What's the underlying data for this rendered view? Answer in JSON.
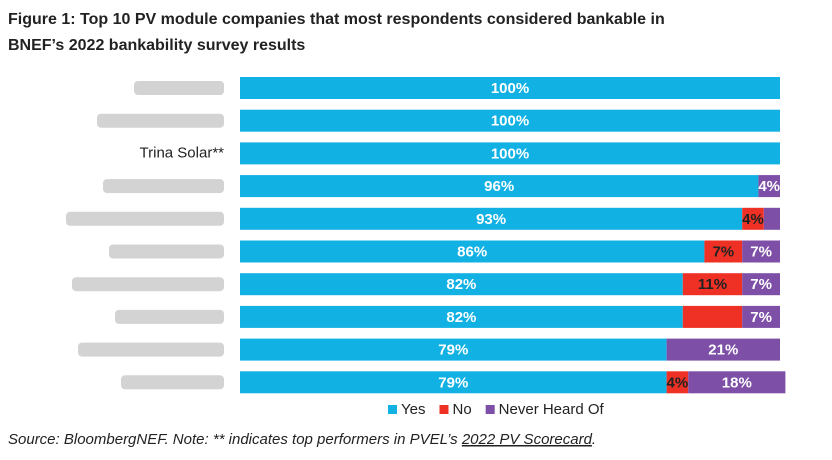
{
  "chart_data": {
    "type": "stacked-bar-horizontal",
    "title": "Figure 1:  Top 10 PV module companies that most respondents considered bankable in",
    "title_line2": "BNEF’s 2022 bankability survey results",
    "categories": [
      null,
      null,
      "Trina Solar**",
      null,
      null,
      null,
      null,
      null,
      null,
      null
    ],
    "xlim": [
      0,
      100
    ],
    "series": [
      {
        "name": "Yes",
        "color": "#12b1e4",
        "values": [
          100,
          100,
          100,
          96,
          93,
          86,
          82,
          82,
          79,
          79
        ],
        "value_labels": [
          "100%",
          "100%",
          "100%",
          "96%",
          "93%",
          "86%",
          "82%",
          "82%",
          "79%",
          "79%"
        ]
      },
      {
        "name": "No",
        "color": "#ee3124",
        "values": [
          0,
          0,
          0,
          0,
          4,
          7,
          11,
          11,
          0,
          4
        ],
        "value_labels": [
          null,
          null,
          null,
          null,
          "4%",
          "7%",
          "11%",
          null,
          null,
          "4%"
        ]
      },
      {
        "name": "Never Heard Of",
        "color": "#7d4fa6",
        "values": [
          0,
          0,
          0,
          4,
          3,
          7,
          7,
          7,
          21,
          18
        ],
        "value_labels": [
          null,
          null,
          null,
          "4%",
          null,
          "7%",
          "7%",
          "7%",
          "21%",
          "18%"
        ]
      }
    ],
    "legend": "bottom",
    "source": "Source: BloombergNEF. Note: ** indicates top performers in PVEL’s ",
    "source_link": "2022 PV Scorecard",
    "source_end": "."
  }
}
